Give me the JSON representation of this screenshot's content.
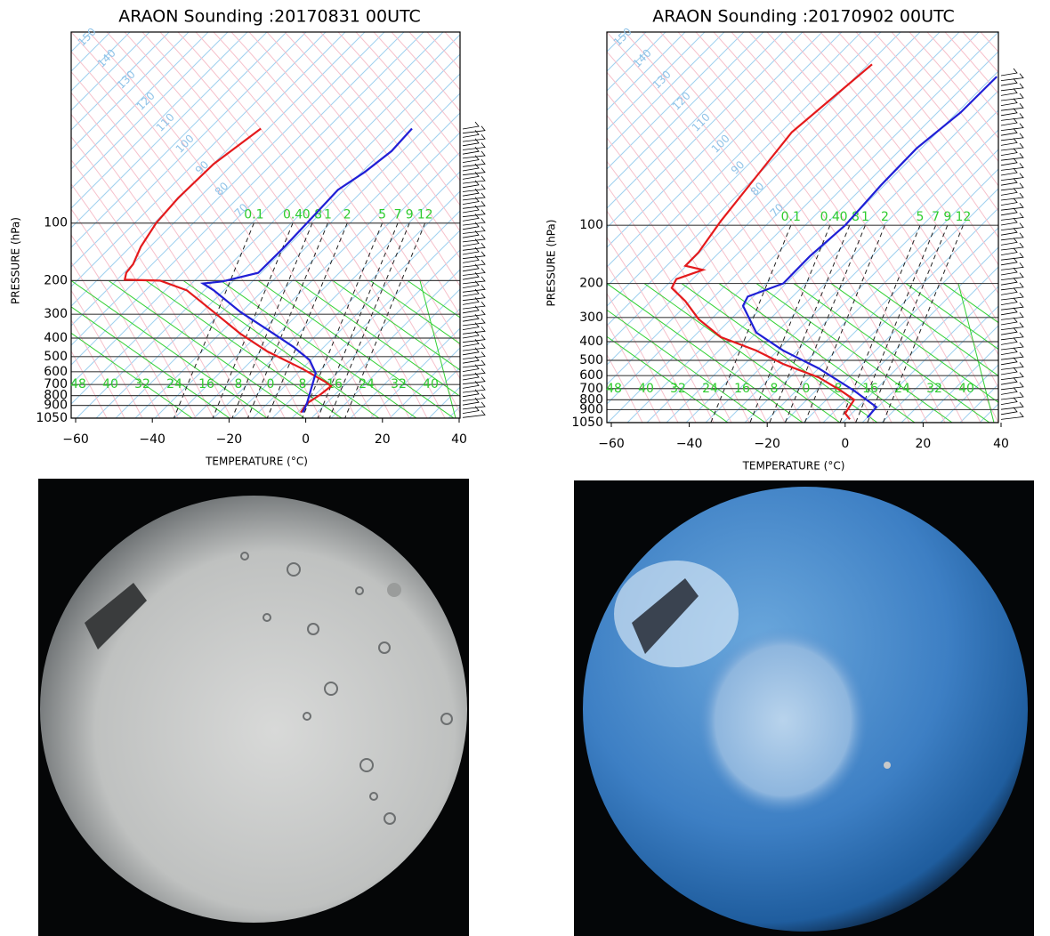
{
  "chart_data": [
    {
      "type": "line",
      "title": "ARAON Sounding :20170831 00UTC",
      "x_label": "TEMPERATURE (°C)",
      "y_label": "PRESSURE  (hPa)",
      "xlim": [
        -60,
        40
      ],
      "xticks": [
        {
          "value": -60,
          "label": "−60"
        },
        {
          "value": -40,
          "label": "−40"
        },
        {
          "value": -20,
          "label": "−20"
        },
        0,
        20,
        40
      ],
      "ylim": [
        1050,
        10
      ],
      "log_y": true,
      "yticks": [
        100,
        200,
        300,
        400,
        500,
        600,
        700,
        800,
        900,
        1050
      ],
      "theta_labels": [
        150,
        140,
        130,
        120,
        110,
        100,
        90,
        80,
        70
      ],
      "mixing_ratio_labels": [
        0.1,
        0.4,
        0.8,
        1,
        2,
        5,
        7,
        9,
        12
      ],
      "moist_adiabat_labels": [
        48,
        40,
        32,
        24,
        16,
        8,
        0,
        8,
        16,
        24,
        32,
        40
      ],
      "series": [
        {
          "color": "#e41a1c",
          "x": [
            -11.7,
            -24,
            -33.3,
            -39,
            -43,
            -45,
            -46.8,
            -47.2,
            -38,
            -31,
            -24,
            -17,
            -10,
            -0.8,
            5,
            6.6,
            3.8,
            0.3,
            -1.3
          ],
          "values": [
            32,
            49,
            74,
            100,
            133,
            164,
            182,
            198,
            200,
            225,
            292,
            380,
            470,
            580,
            676,
            714,
            790,
            880,
            980
          ]
        },
        {
          "color": "#1f1fd6",
          "x": [
            27.7,
            22.4,
            15.4,
            8.4,
            0.3,
            -5.5,
            -12.4,
            -21.7,
            -26.8,
            -24,
            -17,
            -10,
            -3.2,
            1,
            2.6,
            0.3,
            -0.8
          ],
          "values": [
            32,
            42,
            54,
            67,
            100,
            133,
            182,
            202,
            207,
            225,
            292,
            361,
            445,
            521,
            610,
            880,
            980
          ]
        }
      ]
    },
    {
      "type": "line",
      "title": "ARAON Sounding :20170902 00UTC",
      "x_label": "TEMPERATURE (°C)",
      "y_label": "PRESSURE  (hPa)",
      "xlim": [
        -60,
        40
      ],
      "xticks": [
        {
          "value": -60,
          "label": "−60"
        },
        {
          "value": -40,
          "label": "−40"
        },
        {
          "value": -20,
          "label": "−20"
        },
        0,
        20,
        40
      ],
      "ylim": [
        1050,
        10
      ],
      "log_y": true,
      "yticks": [
        100,
        200,
        300,
        400,
        500,
        600,
        700,
        800,
        900,
        1050
      ],
      "theta_labels": [
        150,
        140,
        130,
        120,
        110,
        100,
        90,
        80,
        70
      ],
      "mixing_ratio_labels": [
        0.1,
        0.4,
        0.8,
        1,
        2,
        5,
        7,
        9,
        12
      ],
      "moist_adiabat_labels": [
        48,
        40,
        32,
        24,
        16,
        8,
        0,
        8,
        16,
        24,
        32,
        40
      ],
      "series": [
        {
          "color": "#e41a1c",
          "x": [
            6.9,
            -2.2,
            -13.7,
            -22.8,
            -31.9,
            -37.6,
            -41,
            -36.5,
            -43.3,
            -44.5,
            -41,
            -37.6,
            -31.9,
            -22.8,
            -15.9,
            -6.8,
            -1.1,
            2.3,
            0,
            1.2
          ],
          "values": [
            14.7,
            21,
            33,
            56,
            95,
            138,
            162,
            170,
            190,
            211,
            247,
            306,
            379,
            445,
            522,
            612,
            718,
            800,
            940,
            1010
          ]
        },
        {
          "color": "#1f1fd6",
          "x": [
            38.9,
            29.7,
            18.3,
            9.2,
            0,
            -9.1,
            -15.9,
            -25,
            -26.2,
            -22.8,
            -15.9,
            -6.8,
            2.3,
            8,
            5.7
          ],
          "values": [
            17,
            26,
            40,
            62,
            100,
            145,
            200,
            234,
            261,
            359,
            445,
            550,
            718,
            871,
            990
          ]
        }
      ]
    }
  ]
}
